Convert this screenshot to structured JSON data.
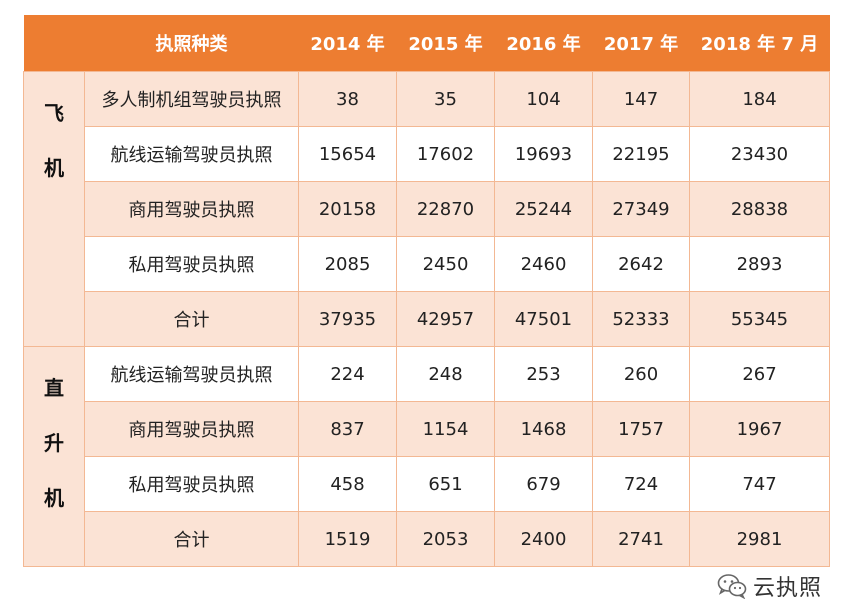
{
  "table": {
    "header": {
      "type_label": "执照种类",
      "years": [
        "2014 年",
        "2015 年",
        "2016 年",
        "2017 年",
        "2018 年 7 月"
      ]
    },
    "groups": [
      {
        "chars": [
          "飞",
          "机"
        ],
        "rows": [
          {
            "label": "多人制机组驾驶员执照",
            "values": [
              "38",
              "35",
              "104",
              "147",
              "184"
            ]
          },
          {
            "label": "航线运输驾驶员执照",
            "values": [
              "15654",
              "17602",
              "19693",
              "22195",
              "23430"
            ]
          },
          {
            "label": "商用驾驶员执照",
            "values": [
              "20158",
              "22870",
              "25244",
              "27349",
              "28838"
            ]
          },
          {
            "label": "私用驾驶员执照",
            "values": [
              "2085",
              "2450",
              "2460",
              "2642",
              "2893"
            ]
          },
          {
            "label": "合计",
            "values": [
              "37935",
              "42957",
              "47501",
              "52333",
              "55345"
            ]
          }
        ]
      },
      {
        "chars": [
          "直",
          "升",
          "机"
        ],
        "rows": [
          {
            "label": "航线运输驾驶员执照",
            "values": [
              "224",
              "248",
              "253",
              "260",
              "267"
            ]
          },
          {
            "label": "商用驾驶员执照",
            "values": [
              "837",
              "1154",
              "1468",
              "1757",
              "1967"
            ]
          },
          {
            "label": "私用驾驶员执照",
            "values": [
              "458",
              "651",
              "679",
              "724",
              "747"
            ]
          },
          {
            "label": "合计",
            "values": [
              "1519",
              "2053",
              "2400",
              "2741",
              "2981"
            ]
          }
        ]
      }
    ]
  },
  "watermark": {
    "icon": "wechat-icon",
    "text": "云执照"
  },
  "colors": {
    "header_bg": "#ed7d31",
    "band_bg": "#fbe3d5",
    "border": "#f3b893"
  }
}
